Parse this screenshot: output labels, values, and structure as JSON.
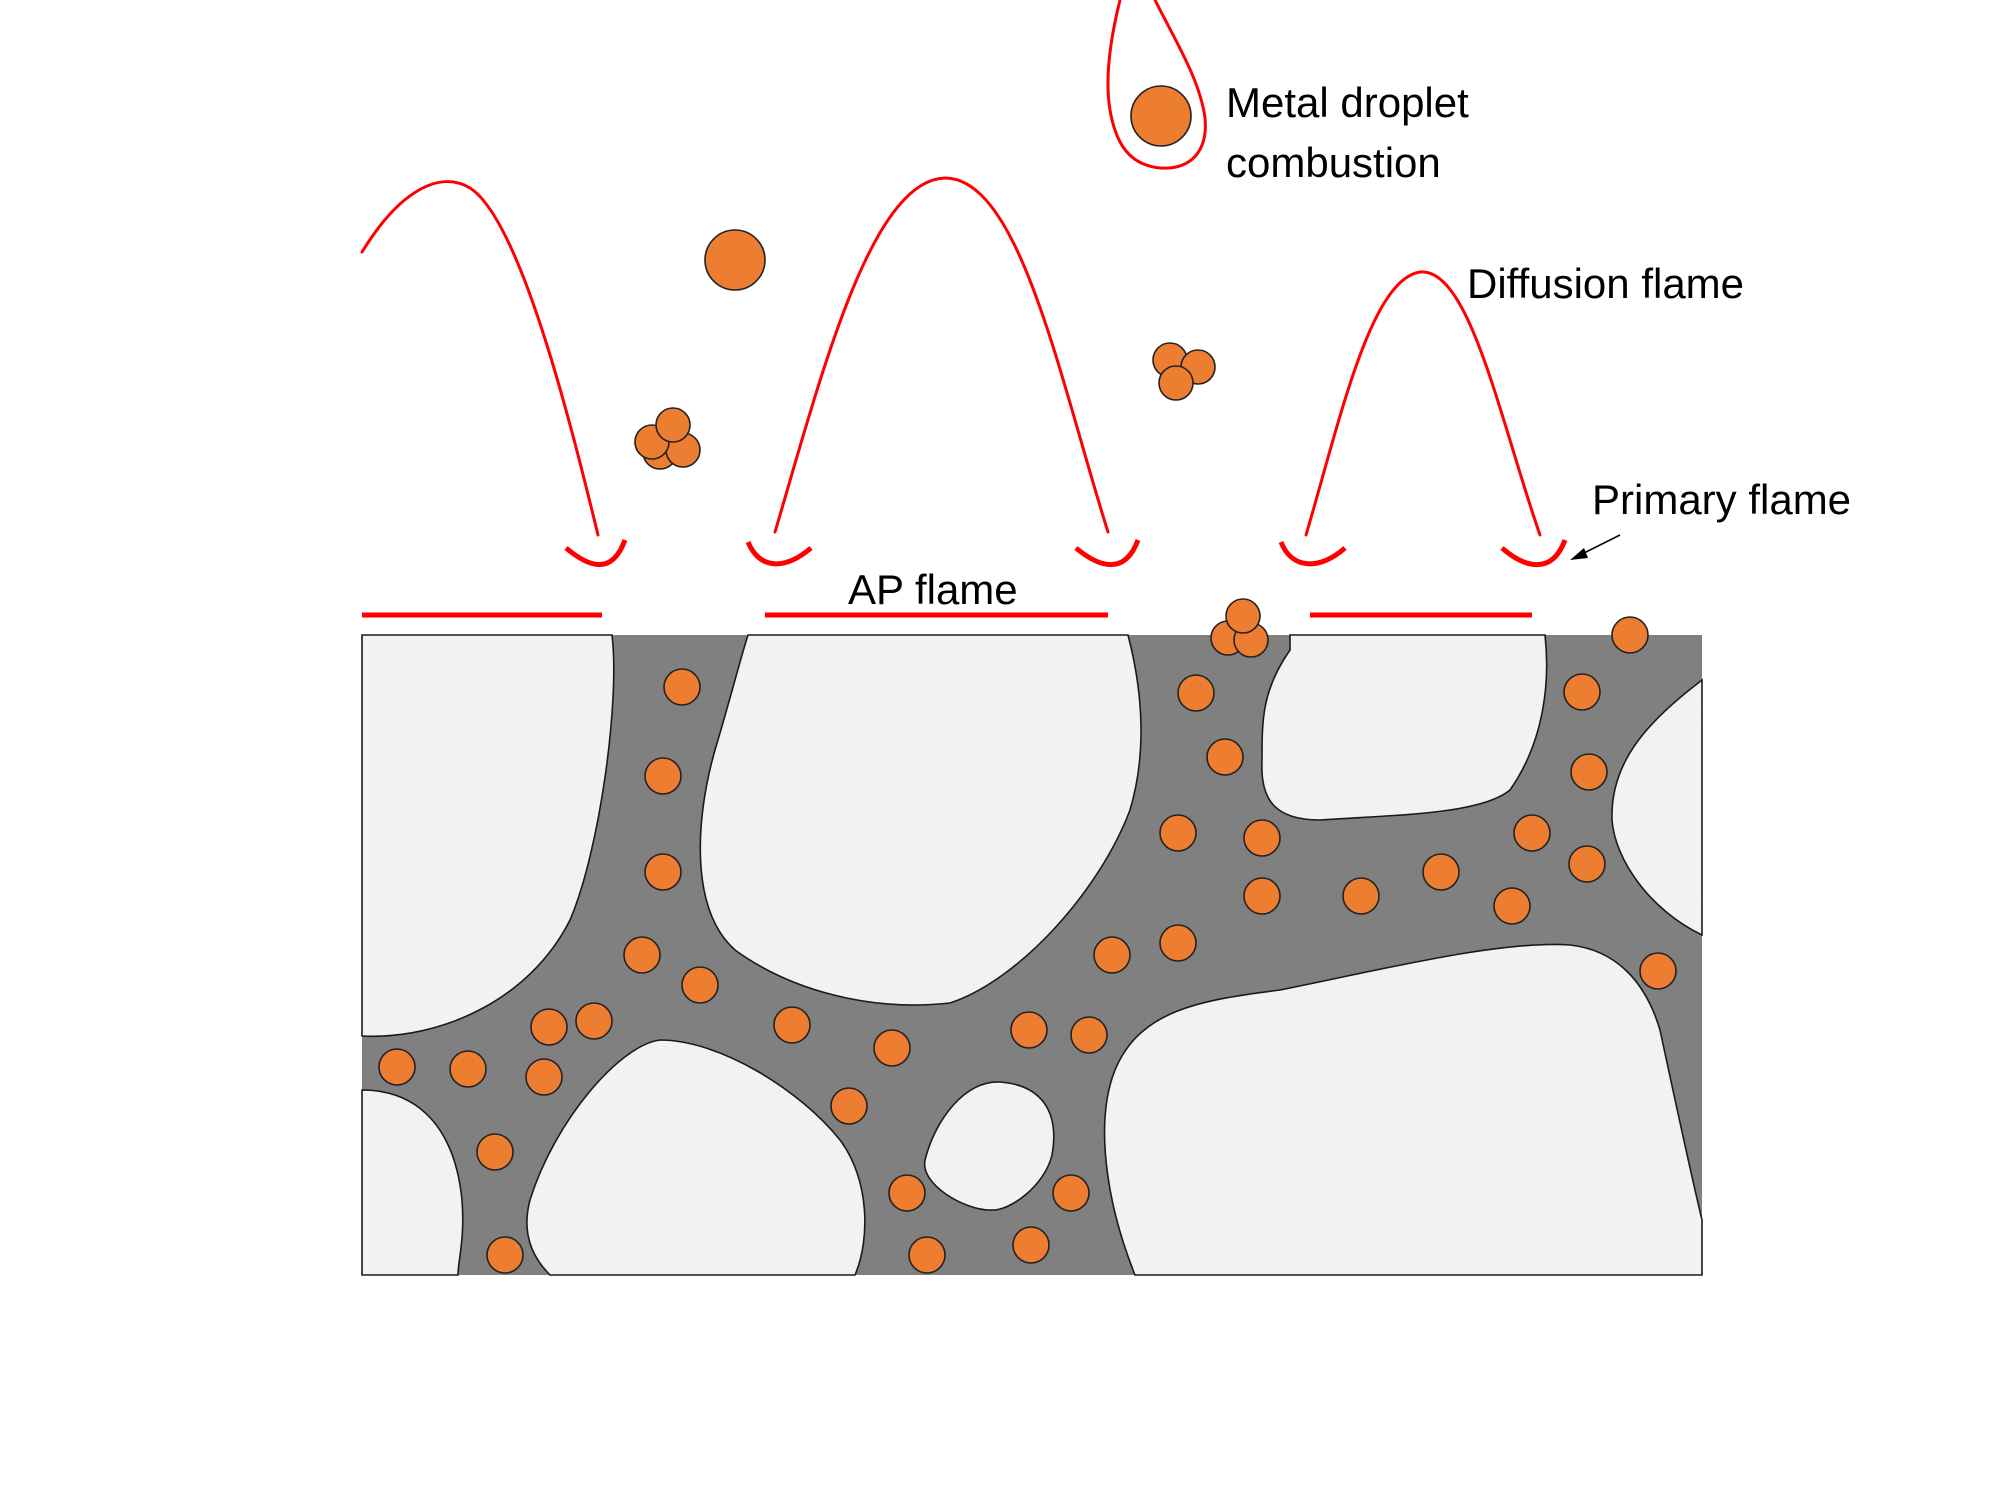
{
  "labels": {
    "metal_droplet_line1": "Metal droplet",
    "metal_droplet_line2": "combustion",
    "diffusion_flame": "Diffusion flame",
    "primary_flame": "Primary flame",
    "ap_flame": "AP flame"
  },
  "colors": {
    "flame": "#ff0000",
    "particle": "#ed7d31",
    "binder": "#808080",
    "crystal": "#f2f2f2",
    "text": "#000000"
  }
}
